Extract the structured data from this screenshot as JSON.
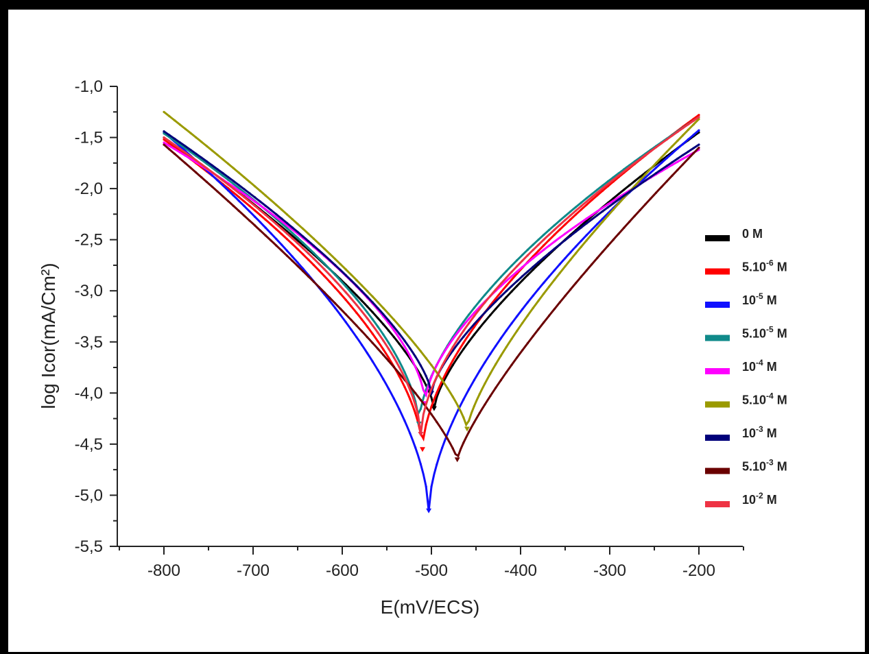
{
  "chart_data": {
    "type": "line",
    "xlabel": "E(mV/ECS)",
    "ylabel": "log Icor(mA/Cm²)",
    "xlim": [
      -850,
      -150
    ],
    "ylim": [
      -5.5,
      -1.0
    ],
    "x_ticks": [
      -800,
      -700,
      -600,
      -500,
      -400,
      -300,
      -200
    ],
    "x_tick_labels": [
      "-800",
      "-700",
      "-600",
      "-500",
      "-400",
      "-300",
      "-200"
    ],
    "y_ticks": [
      -1.0,
      -1.5,
      -2.0,
      -2.5,
      -3.0,
      -3.5,
      -4.0,
      -4.5,
      -5.0,
      -5.5
    ],
    "y_tick_labels": [
      "-1,0",
      "-1,5",
      "-2,0",
      "-2,5",
      "-3,0",
      "-3,5",
      "-4,0",
      "-4,5",
      "-5,0",
      "-5,5"
    ],
    "legend_position": "right",
    "series": [
      {
        "name": "0 M",
        "name_main": "0 M",
        "name_sup": "",
        "name_suffix": "",
        "color": "#000000",
        "ecorr": -497,
        "min": -4.15,
        "start": -1.5,
        "end": -1.45,
        "sharp": 0.7
      },
      {
        "name": "5.10-6 M",
        "name_main": "5.10",
        "name_sup": "-6",
        "name_suffix": " M",
        "color": "#ff0000",
        "ecorr": -510,
        "min": -4.55,
        "start": -1.52,
        "end": -1.28,
        "sharp": 0.6
      },
      {
        "name": "10-5 M",
        "name_main": "10",
        "name_sup": "-5",
        "name_suffix": " M",
        "color": "#1010ff",
        "ecorr": -503,
        "min": -5.15,
        "start": -1.45,
        "end": -1.43,
        "sharp": 0.6
      },
      {
        "name": "5.10-5 M",
        "name_main": "5.10",
        "name_sup": "-5",
        "name_suffix": " M",
        "color": "#108a8a",
        "ecorr": -514,
        "min": -4.3,
        "start": -1.46,
        "end": -1.3,
        "sharp": 0.6
      },
      {
        "name": "10-4 M",
        "name_main": "10",
        "name_sup": "-4",
        "name_suffix": " M",
        "color": "#ff00ff",
        "ecorr": -507,
        "min": -4.1,
        "start": -1.55,
        "end": -1.62,
        "sharp": 0.6
      },
      {
        "name": "5.10-4 M",
        "name_main": "5.10",
        "name_sup": "-4",
        "name_suffix": " M",
        "color": "#9a9a00",
        "ecorr": -460,
        "min": -4.35,
        "start": -1.25,
        "end": -1.32,
        "sharp": 0.75
      },
      {
        "name": "10-3 M",
        "name_main": "10",
        "name_sup": "-3",
        "name_suffix": " M",
        "color": "#00007a",
        "ecorr": -500,
        "min": -4.0,
        "start": -1.44,
        "end": -1.57,
        "sharp": 0.7
      },
      {
        "name": "5.10-3 M",
        "name_main": "5.10",
        "name_sup": "-3",
        "name_suffix": " M",
        "color": "#6a0000",
        "ecorr": -471,
        "min": -4.65,
        "start": -1.57,
        "end": -1.6,
        "sharp": 0.8
      },
      {
        "name": "10-2 M",
        "name_main": "10",
        "name_sup": "-2",
        "name_suffix": " M",
        "color": "#ee3344",
        "ecorr": -512,
        "min": -4.4,
        "start": -1.5,
        "end": -1.3,
        "sharp": 0.6
      }
    ]
  }
}
